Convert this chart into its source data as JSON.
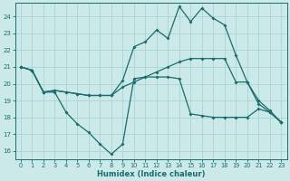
{
  "xlabel": "Humidex (Indice chaleur)",
  "bg_color": "#cce9e9",
  "grid_color": "#aad4d4",
  "line_color": "#1a6b6b",
  "xlim": [
    -0.5,
    23.5
  ],
  "ylim": [
    15.5,
    24.8
  ],
  "yticks": [
    16,
    17,
    18,
    19,
    20,
    21,
    22,
    23,
    24
  ],
  "xticks": [
    0,
    1,
    2,
    3,
    4,
    5,
    6,
    7,
    8,
    9,
    10,
    11,
    12,
    13,
    14,
    15,
    16,
    17,
    18,
    19,
    20,
    21,
    22,
    23
  ],
  "line1_x": [
    0,
    1,
    2,
    3,
    4,
    5,
    6,
    7,
    8,
    9,
    10,
    11,
    12,
    13,
    14,
    15,
    16,
    17,
    18,
    19,
    20,
    21,
    22,
    23
  ],
  "line1_y": [
    21.0,
    20.8,
    19.5,
    19.5,
    18.3,
    17.6,
    17.1,
    16.4,
    15.8,
    16.4,
    20.3,
    20.4,
    20.4,
    20.4,
    20.3,
    18.2,
    18.1,
    18.0,
    18.0,
    18.0,
    18.0,
    18.5,
    18.3,
    17.7
  ],
  "line2_x": [
    0,
    1,
    2,
    3,
    4,
    5,
    6,
    7,
    8,
    9,
    10,
    11,
    12,
    13,
    14,
    15,
    16,
    17,
    18,
    19,
    20,
    21,
    22,
    23
  ],
  "line2_y": [
    21.0,
    20.8,
    19.5,
    19.6,
    19.5,
    19.4,
    19.3,
    19.3,
    19.3,
    19.8,
    20.1,
    20.4,
    20.7,
    21.0,
    21.3,
    21.5,
    21.5,
    21.5,
    21.5,
    20.1,
    20.1,
    18.8,
    18.3,
    17.7
  ],
  "line3_x": [
    0,
    1,
    2,
    3,
    4,
    5,
    6,
    7,
    8,
    9,
    10,
    11,
    12,
    13,
    14,
    15,
    16,
    17,
    18,
    19,
    20,
    21,
    22,
    23
  ],
  "line3_y": [
    21.0,
    20.8,
    19.5,
    19.6,
    19.5,
    19.4,
    19.3,
    19.3,
    19.3,
    20.2,
    22.2,
    22.5,
    23.2,
    22.7,
    24.6,
    23.7,
    24.5,
    23.9,
    23.5,
    21.7,
    20.1,
    19.0,
    18.4,
    17.7
  ]
}
